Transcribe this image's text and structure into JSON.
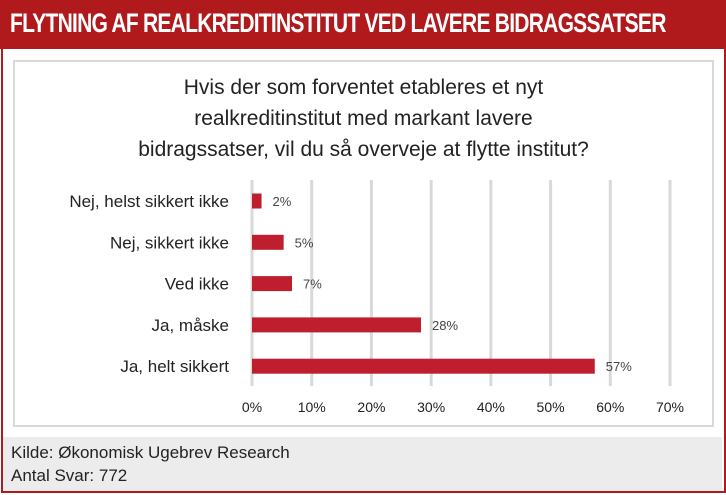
{
  "header": {
    "title": "FLYTNING AF REALKREDITINSTITUT VED LAVERE BIDRAGSSATSER"
  },
  "chart_data": {
    "type": "bar",
    "orientation": "horizontal",
    "title": "Hvis der som forventet etableres et nyt realkreditinstitut med markant lavere bidragssatser, vil du så overveje at flytte institut?",
    "title_lines": [
      "Hvis der som forventet etableres et nyt",
      "realkreditinstitut med markant lavere",
      "bidragssatser, vil du så overveje at flytte institut?"
    ],
    "categories": [
      "Nej, helst sikkert ikke",
      "Nej, sikkert ikke",
      "Ved ikke",
      "Ja, måske",
      "Ja, helt sikkert"
    ],
    "values": [
      1.6,
      5.3,
      6.7,
      28.3,
      57.4
    ],
    "data_labels": [
      "2%",
      "5%",
      "7%",
      "28%",
      "57%"
    ],
    "xlim": [
      0,
      70
    ],
    "x_ticks": [
      "0%",
      "10%",
      "20%",
      "30%",
      "40%",
      "50%",
      "60%",
      "70%"
    ],
    "xlabel": "",
    "ylabel": "",
    "grid": true,
    "bar_color": "#be1e2d"
  },
  "footer": {
    "source": "Kilde: Økonomisk Ugebrev Research",
    "count": "Antal Svar: 772"
  }
}
